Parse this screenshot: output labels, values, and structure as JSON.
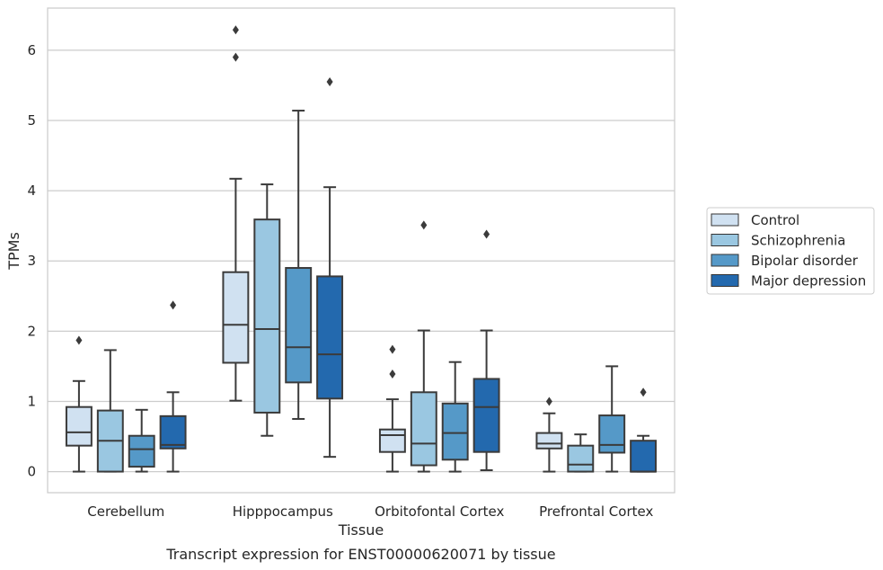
{
  "chart_data": {
    "type": "box",
    "xlabel": "Tissue",
    "ylabel": "TPMs",
    "caption": "Transcript expression for ENST00000620071 by tissue",
    "categories": [
      "Cerebellum",
      "Hipppocampus",
      "Orbitofontal Cortex",
      "Prefrontal Cortex"
    ],
    "yticks": [
      0,
      1,
      2,
      3,
      4,
      5,
      6
    ],
    "ylim": [
      -0.3,
      6.6
    ],
    "grid": "horizontal",
    "legend_position": "right",
    "series": [
      {
        "name": "Control",
        "color": "#d0e1f1",
        "boxes": [
          {
            "whisker_low": 0.0,
            "q1": 0.37,
            "median": 0.56,
            "q3": 0.92,
            "whisker_high": 1.29,
            "outliers": [
              1.87
            ]
          },
          {
            "whisker_low": 1.01,
            "q1": 1.55,
            "median": 2.09,
            "q3": 2.84,
            "whisker_high": 4.17,
            "outliers": [
              5.9,
              6.29
            ]
          },
          {
            "whisker_low": 0.0,
            "q1": 0.28,
            "median": 0.52,
            "q3": 0.6,
            "whisker_high": 1.03,
            "outliers": [
              1.39,
              1.74
            ]
          },
          {
            "whisker_low": 0.0,
            "q1": 0.33,
            "median": 0.4,
            "q3": 0.55,
            "whisker_high": 0.83,
            "outliers": [
              1.0
            ]
          }
        ]
      },
      {
        "name": "Schizophrenia",
        "color": "#9ac7e1",
        "boxes": [
          {
            "whisker_low": 0.0,
            "q1": 0.0,
            "median": 0.44,
            "q3": 0.87,
            "whisker_high": 1.73,
            "outliers": []
          },
          {
            "whisker_low": 0.51,
            "q1": 0.84,
            "median": 2.03,
            "q3": 3.59,
            "whisker_high": 4.09,
            "outliers": []
          },
          {
            "whisker_low": 0.0,
            "q1": 0.09,
            "median": 0.4,
            "q3": 1.13,
            "whisker_high": 2.01,
            "outliers": [
              3.51
            ]
          },
          {
            "whisker_low": 0.0,
            "q1": 0.0,
            "median": 0.1,
            "q3": 0.37,
            "whisker_high": 0.53,
            "outliers": []
          }
        ]
      },
      {
        "name": "Bipolar disorder",
        "color": "#5599c8",
        "boxes": [
          {
            "whisker_low": 0.0,
            "q1": 0.07,
            "median": 0.32,
            "q3": 0.51,
            "whisker_high": 0.88,
            "outliers": []
          },
          {
            "whisker_low": 0.75,
            "q1": 1.27,
            "median": 1.77,
            "q3": 2.9,
            "whisker_high": 5.14,
            "outliers": []
          },
          {
            "whisker_low": 0.0,
            "q1": 0.17,
            "median": 0.55,
            "q3": 0.97,
            "whisker_high": 1.56,
            "outliers": []
          },
          {
            "whisker_low": 0.0,
            "q1": 0.27,
            "median": 0.38,
            "q3": 0.8,
            "whisker_high": 1.5,
            "outliers": []
          }
        ]
      },
      {
        "name": "Major depression",
        "color": "#2369ae",
        "boxes": [
          {
            "whisker_low": 0.0,
            "q1": 0.33,
            "median": 0.38,
            "q3": 0.79,
            "whisker_high": 1.13,
            "outliers": [
              2.37
            ]
          },
          {
            "whisker_low": 0.21,
            "q1": 1.04,
            "median": 1.67,
            "q3": 2.78,
            "whisker_high": 4.05,
            "outliers": [
              5.55
            ]
          },
          {
            "whisker_low": 0.02,
            "q1": 0.28,
            "median": 0.92,
            "q3": 1.32,
            "whisker_high": 2.01,
            "outliers": [
              3.38
            ]
          },
          {
            "whisker_low": 0.0,
            "q1": 0.0,
            "median": 0.0,
            "q3": 0.44,
            "whisker_high": 0.51,
            "outliers": [
              1.13
            ]
          }
        ]
      }
    ]
  }
}
